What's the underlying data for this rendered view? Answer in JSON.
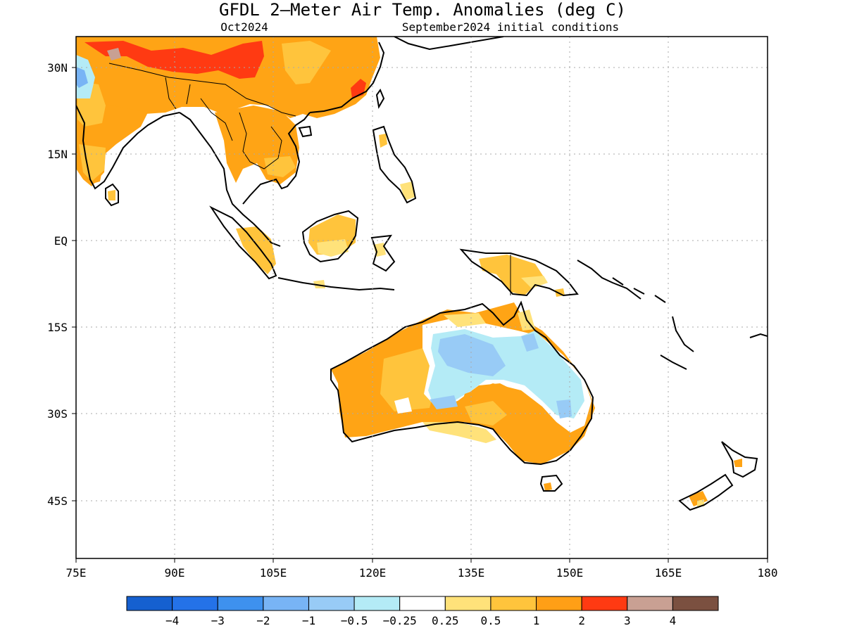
{
  "title": "GFDL 2—Meter Air Temp. Anomalies (deg C)",
  "subtitle_left": "Oct2024",
  "subtitle_right": "September2024 initial conditions",
  "lat_labels": [
    "30N",
    "15N",
    "EQ",
    "15S",
    "30S",
    "45S"
  ],
  "lon_labels": [
    "75E",
    "90E",
    "105E",
    "120E",
    "135E",
    "150E",
    "165E",
    "180"
  ],
  "colorbar": {
    "colors": [
      "#1560d0",
      "#2472e8",
      "#3e91ee",
      "#78b4f5",
      "#98cbf6",
      "#b4ebf6",
      "#ffffff",
      "#ffe27a",
      "#ffc43c",
      "#ff9f16",
      "#ff3a12",
      "#c9a093",
      "#7b5040"
    ],
    "labels": [
      "−4",
      "−3",
      "−2",
      "−1",
      "−0.5",
      "−0.25",
      "0.25",
      "0.5",
      "1",
      "2",
      "3",
      "4"
    ]
  },
  "colors": {
    "coast": "#000000",
    "grid": "#aaaaaa",
    "warm_orange": "#ffa415",
    "light_orange": "#ffc43c",
    "yellow": "#ffe27a",
    "red": "#ff3a12",
    "blue": "#98cbf6",
    "light_blue": "#b4ebf6",
    "mid_blue": "#78b4f5",
    "grey": "#c8a093"
  }
}
